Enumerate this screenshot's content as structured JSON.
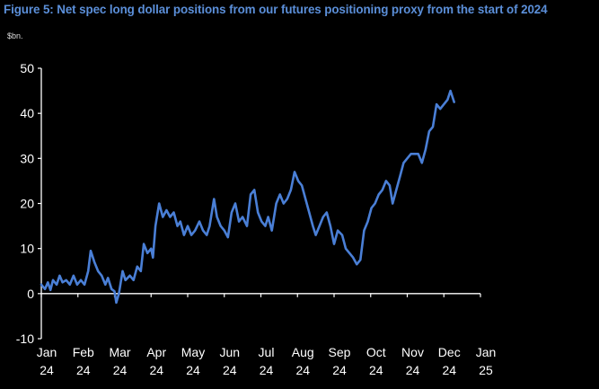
{
  "title": "Figure 5: Net spec long dollar positions from our futures positioning proxy from the start of 2024",
  "unit_label": "$bn.",
  "colors": {
    "line": "#4a7fd6",
    "axis": "#ffffff",
    "text": "#ffffff",
    "title": "#5b8fd9",
    "background": "#000000"
  },
  "chart_data": {
    "type": "line",
    "title": "Figure 5: Net spec long dollar positions from our futures positioning proxy from the start of 2024",
    "ylabel": "$bn.",
    "xlabel": "",
    "ylim": [
      -10,
      50
    ],
    "yticks": [
      -10,
      0,
      10,
      20,
      30,
      40,
      50
    ],
    "xlim": [
      0,
      12.1
    ],
    "grid": false,
    "legend": "none",
    "xtick_labels": [
      [
        "Jan",
        "24"
      ],
      [
        "Feb",
        "24"
      ],
      [
        "Mar",
        "24"
      ],
      [
        "Apr",
        "24"
      ],
      [
        "May",
        "24"
      ],
      [
        "Jun",
        "24"
      ],
      [
        "Jul",
        "24"
      ],
      [
        "Aug",
        "24"
      ],
      [
        "Sep",
        "24"
      ],
      [
        "Oct",
        "24"
      ],
      [
        "Nov",
        "24"
      ],
      [
        "Dec",
        "24"
      ],
      [
        "Jan",
        "25"
      ]
    ],
    "series": [
      {
        "name": "",
        "points": [
          [
            0.0,
            2.0
          ],
          [
            0.1,
            1.0
          ],
          [
            0.18,
            2.5
          ],
          [
            0.25,
            0.8
          ],
          [
            0.32,
            3.0
          ],
          [
            0.42,
            2.0
          ],
          [
            0.5,
            4.0
          ],
          [
            0.58,
            2.5
          ],
          [
            0.68,
            3.0
          ],
          [
            0.78,
            2.0
          ],
          [
            0.88,
            4.0
          ],
          [
            0.98,
            2.0
          ],
          [
            1.08,
            3.0
          ],
          [
            1.18,
            2.0
          ],
          [
            1.28,
            5.0
          ],
          [
            1.35,
            9.5
          ],
          [
            1.45,
            7.0
          ],
          [
            1.55,
            5.0
          ],
          [
            1.65,
            4.0
          ],
          [
            1.75,
            2.0
          ],
          [
            1.82,
            3.5
          ],
          [
            1.92,
            1.0
          ],
          [
            2.0,
            0.5
          ],
          [
            2.05,
            -2.0
          ],
          [
            2.12,
            0.0
          ],
          [
            2.22,
            5.0
          ],
          [
            2.3,
            3.0
          ],
          [
            2.42,
            4.0
          ],
          [
            2.52,
            3.0
          ],
          [
            2.62,
            6.0
          ],
          [
            2.72,
            5.0
          ],
          [
            2.8,
            11.0
          ],
          [
            2.9,
            9.0
          ],
          [
            3.0,
            10.0
          ],
          [
            3.05,
            8.0
          ],
          [
            3.12,
            15.0
          ],
          [
            3.22,
            20.0
          ],
          [
            3.32,
            17.0
          ],
          [
            3.42,
            18.5
          ],
          [
            3.52,
            17.0
          ],
          [
            3.62,
            18.0
          ],
          [
            3.72,
            15.0
          ],
          [
            3.8,
            16.0
          ],
          [
            3.9,
            13.0
          ],
          [
            4.0,
            15.0
          ],
          [
            4.1,
            13.0
          ],
          [
            4.2,
            14.0
          ],
          [
            4.32,
            16.0
          ],
          [
            4.42,
            14.0
          ],
          [
            4.52,
            13.0
          ],
          [
            4.6,
            15.0
          ],
          [
            4.72,
            21.0
          ],
          [
            4.8,
            17.0
          ],
          [
            4.9,
            15.0
          ],
          [
            5.0,
            14.0
          ],
          [
            5.1,
            12.5
          ],
          [
            5.2,
            18.0
          ],
          [
            5.3,
            20.0
          ],
          [
            5.4,
            16.0
          ],
          [
            5.5,
            17.0
          ],
          [
            5.62,
            15.0
          ],
          [
            5.72,
            22.0
          ],
          [
            5.82,
            23.0
          ],
          [
            5.92,
            18.0
          ],
          [
            6.02,
            16.0
          ],
          [
            6.12,
            15.0
          ],
          [
            6.2,
            17.0
          ],
          [
            6.3,
            14.0
          ],
          [
            6.42,
            20.0
          ],
          [
            6.52,
            22.0
          ],
          [
            6.62,
            20.0
          ],
          [
            6.72,
            21.0
          ],
          [
            6.82,
            23.0
          ],
          [
            6.92,
            27.0
          ],
          [
            7.02,
            25.0
          ],
          [
            7.12,
            24.0
          ],
          [
            7.22,
            21.0
          ],
          [
            7.32,
            18.0
          ],
          [
            7.42,
            15.0
          ],
          [
            7.5,
            13.0
          ],
          [
            7.6,
            15.0
          ],
          [
            7.7,
            17.0
          ],
          [
            7.8,
            18.0
          ],
          [
            7.9,
            15.0
          ],
          [
            8.0,
            11.0
          ],
          [
            8.1,
            14.0
          ],
          [
            8.22,
            13.0
          ],
          [
            8.32,
            10.0
          ],
          [
            8.42,
            9.0
          ],
          [
            8.52,
            8.0
          ],
          [
            8.62,
            6.5
          ],
          [
            8.72,
            7.5
          ],
          [
            8.82,
            14.0
          ],
          [
            8.92,
            16.0
          ],
          [
            9.02,
            19.0
          ],
          [
            9.12,
            20.0
          ],
          [
            9.22,
            22.0
          ],
          [
            9.32,
            23.0
          ],
          [
            9.42,
            25.0
          ],
          [
            9.52,
            24.0
          ],
          [
            9.6,
            20.0
          ],
          [
            9.7,
            23.0
          ],
          [
            9.8,
            26.0
          ],
          [
            9.9,
            29.0
          ],
          [
            10.0,
            30.0
          ],
          [
            10.1,
            31.0
          ],
          [
            10.2,
            31.0
          ],
          [
            10.3,
            31.0
          ],
          [
            10.4,
            29.0
          ],
          [
            10.5,
            32.0
          ],
          [
            10.6,
            36.0
          ],
          [
            10.7,
            37.0
          ],
          [
            10.8,
            42.0
          ],
          [
            10.9,
            41.0
          ],
          [
            11.0,
            42.0
          ],
          [
            11.1,
            43.0
          ],
          [
            11.18,
            45.0
          ],
          [
            11.28,
            42.5
          ]
        ]
      }
    ]
  }
}
